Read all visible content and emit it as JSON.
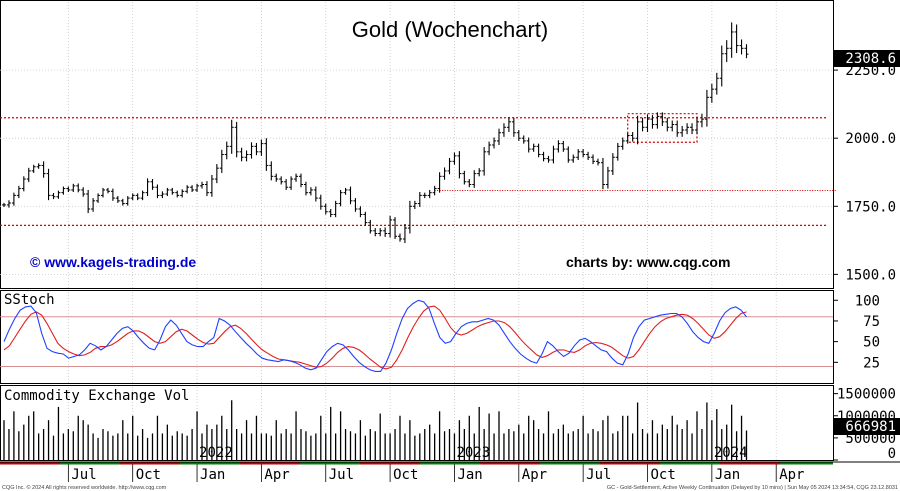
{
  "chart_data": {
    "type": "ohlc",
    "title": "Gold (Wochenchart)",
    "website_label": "© www.kagels-trading.de",
    "credit_label": "charts by: www.cqg.com",
    "colors": {
      "price_bar": "#000000",
      "resistance_line": "#d00000",
      "stoch_k": "#2040ff",
      "stoch_d": "#e02020",
      "volume_bar": "#000000",
      "last_value_box": "#000000",
      "link_text": "#0000cc"
    },
    "price_panel": {
      "y_ticks": [
        "2250.0",
        "2000.0",
        "1750.0",
        "1500.0"
      ],
      "y_tick_values": [
        2250,
        2000,
        1750,
        1500
      ],
      "ylim": [
        1450,
        2500
      ],
      "last_value_label": "2308.6",
      "last_value": 2308.6,
      "horizontal_lines": [
        2075,
        1680
      ],
      "support_line": {
        "value": 1808,
        "from_week": 87,
        "to_week": 156
      },
      "consolidation_box": {
        "from_week": 126,
        "to_week": 140,
        "low": 1985,
        "high": 2090
      },
      "weekly_close": [
        1755,
        1762,
        1790,
        1815,
        1850,
        1880,
        1895,
        1900,
        1870,
        1790,
        1785,
        1800,
        1815,
        1810,
        1825,
        1810,
        1795,
        1740,
        1770,
        1790,
        1810,
        1805,
        1780,
        1770,
        1760,
        1780,
        1790,
        1780,
        1800,
        1840,
        1820,
        1790,
        1795,
        1810,
        1800,
        1790,
        1805,
        1820,
        1810,
        1825,
        1830,
        1800,
        1850,
        1890,
        1940,
        1970,
        2040,
        1950,
        1930,
        1940,
        1970,
        1950,
        1980,
        1900,
        1860,
        1850,
        1840,
        1820,
        1850,
        1860,
        1830,
        1800,
        1810,
        1780,
        1750,
        1730,
        1720,
        1760,
        1800,
        1810,
        1770,
        1740,
        1720,
        1690,
        1660,
        1650,
        1660,
        1650,
        1700,
        1640,
        1630,
        1670,
        1750,
        1760,
        1790,
        1790,
        1800,
        1815,
        1860,
        1880,
        1915,
        1935,
        1870,
        1840,
        1830,
        1870,
        1880,
        1950,
        1975,
        1990,
        2020,
        2040,
        2060,
        2020,
        2000,
        1990,
        1960,
        1970,
        1940,
        1925,
        1920,
        1960,
        1980,
        1960,
        1920,
        1930,
        1950,
        1940,
        1930,
        1915,
        1910,
        1830,
        1880,
        1930,
        1970,
        1990,
        2010,
        2000,
        2060,
        2040,
        2070,
        2050,
        2080,
        2060,
        2040,
        2050,
        2020,
        2030,
        2040,
        2030,
        2060,
        2070,
        2150,
        2180,
        2220,
        2310,
        2330,
        2390,
        2340,
        2330,
        2308.6
      ],
      "weekly_range": [
        30,
        40,
        40,
        40,
        40,
        45,
        30,
        30,
        60,
        70,
        35,
        30,
        30,
        30,
        30,
        35,
        40,
        60,
        40,
        30,
        30,
        30,
        40,
        30,
        30,
        30,
        30,
        30,
        30,
        50,
        40,
        40,
        40,
        30,
        30,
        30,
        30,
        30,
        30,
        30,
        40,
        50,
        60,
        60,
        70,
        70,
        110,
        80,
        60,
        60,
        60,
        50,
        60,
        80,
        60,
        40,
        40,
        40,
        40,
        40,
        40,
        40,
        40,
        50,
        50,
        40,
        40,
        40,
        40,
        30,
        50,
        40,
        40,
        40,
        40,
        40,
        40,
        50,
        60,
        40,
        40,
        60,
        80,
        40,
        50,
        40,
        40,
        40,
        60,
        50,
        50,
        50,
        70,
        40,
        40,
        50,
        40,
        70,
        50,
        50,
        60,
        60,
        70,
        60,
        40,
        40,
        50,
        40,
        40,
        40,
        40,
        50,
        50,
        40,
        40,
        40,
        40,
        40,
        40,
        40,
        40,
        70,
        60,
        60,
        50,
        50,
        40,
        50,
        90,
        60,
        70,
        60,
        60,
        60,
        60,
        60,
        60,
        60,
        60,
        60,
        60,
        80,
        110,
        80,
        80,
        120,
        120,
        140,
        110,
        90,
        60
      ]
    },
    "stoch_panel": {
      "label": "SStoch",
      "y_ticks": [
        "100",
        "75",
        "50",
        "25"
      ],
      "y_tick_values": [
        100,
        75,
        50,
        25
      ],
      "ylim": [
        0,
        110
      ],
      "reference_lines": [
        80,
        20
      ],
      "k_values": [
        50,
        65,
        78,
        88,
        92,
        93,
        85,
        60,
        42,
        38,
        36,
        35,
        30,
        32,
        34,
        40,
        48,
        45,
        40,
        44,
        52,
        60,
        66,
        68,
        63,
        55,
        48,
        42,
        40,
        52,
        68,
        76,
        70,
        60,
        50,
        46,
        44,
        44,
        50,
        55,
        78,
        75,
        70,
        62,
        55,
        48,
        42,
        35,
        30,
        28,
        27,
        26,
        28,
        27,
        25,
        22,
        18,
        16,
        18,
        28,
        38,
        44,
        48,
        46,
        40,
        32,
        25,
        20,
        16,
        14,
        14,
        24,
        40,
        60,
        78,
        90,
        96,
        100,
        98,
        90,
        72,
        55,
        48,
        50,
        60,
        68,
        72,
        74,
        74,
        76,
        78,
        76,
        70,
        60,
        50,
        42,
        35,
        30,
        26,
        24,
        35,
        50,
        45,
        38,
        32,
        36,
        45,
        52,
        54,
        50,
        45,
        40,
        38,
        30,
        24,
        22,
        35,
        55,
        68,
        76,
        78,
        80,
        82,
        83,
        84,
        84,
        80,
        72,
        62,
        55,
        50,
        48,
        60,
        75,
        85,
        90,
        92,
        88,
        80
      ],
      "d_values": [
        40,
        45,
        55,
        65,
        75,
        83,
        86,
        82,
        72,
        60,
        48,
        42,
        38,
        35,
        33,
        34,
        37,
        42,
        44,
        44,
        46,
        50,
        55,
        60,
        63,
        63,
        60,
        55,
        50,
        48,
        50,
        56,
        62,
        65,
        63,
        58,
        53,
        49,
        47,
        48,
        55,
        62,
        68,
        70,
        66,
        60,
        53,
        46,
        40,
        36,
        32,
        29,
        28,
        27,
        26,
        25,
        23,
        21,
        19,
        20,
        24,
        30,
        37,
        42,
        44,
        43,
        40,
        35,
        29,
        24,
        19,
        17,
        19,
        28,
        40,
        54,
        67,
        78,
        87,
        92,
        93,
        88,
        78,
        67,
        60,
        58,
        60,
        64,
        68,
        71,
        73,
        75,
        75,
        73,
        68,
        61,
        53,
        46,
        40,
        34,
        31,
        33,
        37,
        40,
        40,
        38,
        37,
        40,
        45,
        48,
        49,
        48,
        46,
        43,
        38,
        33,
        30,
        32,
        40,
        50,
        60,
        68,
        74,
        78,
        80,
        82,
        83,
        82,
        78,
        72,
        65,
        58,
        54,
        56,
        62,
        70,
        78,
        84,
        86
      ]
    },
    "volume_panel": {
      "label": "Commodity Exchange Vol",
      "y_ticks": [
        "1500000",
        "1000000",
        "500000",
        "0"
      ],
      "y_tick_values": [
        1500000,
        1000000,
        500000,
        0
      ],
      "ylim": [
        0,
        1650000
      ],
      "last_value_label": "666981",
      "last_value": 666981,
      "volume_values": [
        900000,
        700000,
        1100000,
        650000,
        800000,
        1000000,
        1100000,
        600000,
        700000,
        900000,
        550000,
        1200000,
        600000,
        700000,
        650000,
        1000000,
        900000,
        800000,
        600000,
        500000,
        700000,
        650000,
        550000,
        600000,
        900000,
        600000,
        1000000,
        550000,
        700000,
        500000,
        600000,
        1000000,
        600000,
        800000,
        550000,
        650000,
        600000,
        550000,
        700000,
        1100000,
        600000,
        800000,
        700000,
        800000,
        1000000,
        700000,
        1350000,
        700000,
        600000,
        900000,
        600000,
        1000000,
        600000,
        600000,
        550000,
        900000,
        600000,
        700000,
        600000,
        1100000,
        700000,
        650000,
        550000,
        600000,
        1000000,
        600000,
        1200000,
        600000,
        1100000,
        700000,
        650000,
        600000,
        900000,
        550000,
        700000,
        650000,
        1050000,
        600000,
        600000,
        700000,
        1000000,
        600000,
        900000,
        550000,
        600000,
        700000,
        800000,
        600000,
        1100000,
        650000,
        700000,
        600000,
        900000,
        700000,
        1000000,
        600000,
        1200000,
        700000,
        1050000,
        600000,
        1100000,
        600000,
        700000,
        650000,
        800000,
        600000,
        1000000,
        900000,
        700000,
        600000,
        1100000,
        600000,
        700000,
        800000,
        600000,
        650000,
        700000,
        1000000,
        600000,
        700000,
        650000,
        900000,
        1000000,
        600000,
        650000,
        1000000,
        1000000,
        600000,
        1300000,
        700000,
        600000,
        900000,
        600000,
        800000,
        700000,
        1000000,
        800000,
        700000,
        900000,
        600000,
        1100000,
        700000,
        1300000,
        900000,
        1150000,
        700000,
        800000,
        1250000,
        650000,
        1000000,
        666981
      ]
    },
    "x_axis": {
      "tick_labels": [
        "Jul",
        "Oct",
        "Jan",
        "Apr",
        "Jul",
        "Oct",
        "Jan",
        "Apr",
        "Jul",
        "Oct",
        "Jan",
        "Apr"
      ],
      "tick_weeks": [
        13,
        26,
        39,
        52,
        65,
        78,
        91,
        104,
        117,
        130,
        143,
        156
      ],
      "year_labels": [
        "2022",
        "2023",
        "2024"
      ],
      "year_weeks": [
        39,
        91,
        143
      ]
    },
    "footer": {
      "left": "CQG Inc. © 2024 All rights reserved worldwide. http://www.cqg.com",
      "right": "GC - Gold-Settlement, Active Weekly Continuation (Delayed by 10 mins)  |  Sun May 05 2024 13:34:54,  CQG 23.12.8031"
    }
  }
}
